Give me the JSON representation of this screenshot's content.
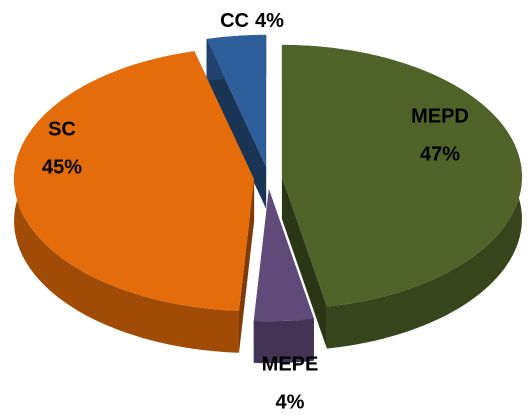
{
  "chart_data": {
    "type": "pie",
    "categories": [
      "MEPD",
      "MEPE",
      "SC",
      "CC"
    ],
    "values": [
      47,
      4,
      45,
      4
    ],
    "value_labels": [
      "47%",
      "4%",
      "45%",
      "4%"
    ],
    "colors": [
      "#4f6228",
      "#5f4a7a",
      "#e46c0a",
      "#2e5e9a"
    ]
  }
}
